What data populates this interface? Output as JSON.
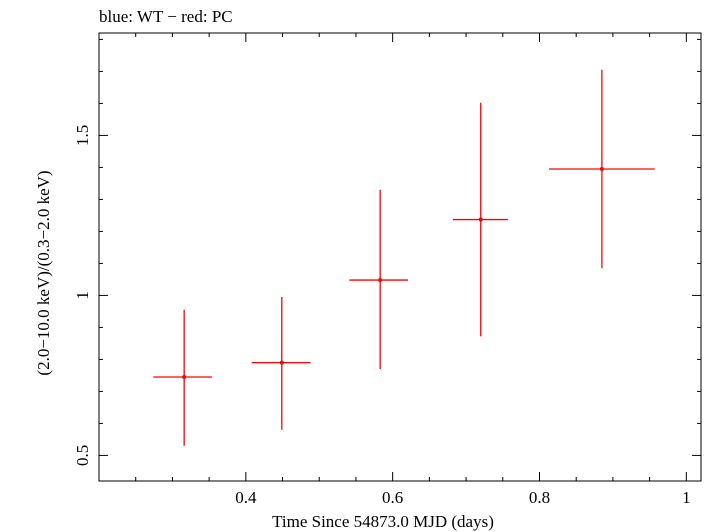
{
  "chart_data": {
    "type": "scatter",
    "title": "blue: WT − red: PC",
    "xlabel": "Time Since 54873.0 MJD (days)",
    "ylabel": "(2.0−10.0 keV)/(0.3−2.0 keV)",
    "xlim": [
      0.2,
      1.02
    ],
    "ylim": [
      0.42,
      1.82
    ],
    "xticks": [
      {
        "value": 0.4,
        "label": "0.4"
      },
      {
        "value": 0.6,
        "label": "0.6"
      },
      {
        "value": 0.8,
        "label": "0.8"
      },
      {
        "value": 1.0,
        "label": "1"
      }
    ],
    "yticks": [
      {
        "value": 0.5,
        "label": "0.5"
      },
      {
        "value": 1.0,
        "label": "1"
      },
      {
        "value": 1.5,
        "label": "1.5"
      }
    ],
    "grid": false,
    "series": [
      {
        "name": "PC",
        "color": "#ff0000",
        "points": [
          {
            "x": 0.316,
            "xerr_lo": 0.042,
            "xerr_hi": 0.038,
            "y": 0.745,
            "yerr_lo": 0.215,
            "yerr_hi": 0.21
          },
          {
            "x": 0.449,
            "xerr_lo": 0.041,
            "xerr_hi": 0.039,
            "y": 0.79,
            "yerr_lo": 0.21,
            "yerr_hi": 0.205
          },
          {
            "x": 0.583,
            "xerr_lo": 0.042,
            "xerr_hi": 0.038,
            "y": 1.048,
            "yerr_lo": 0.278,
            "yerr_hi": 0.282
          },
          {
            "x": 0.72,
            "xerr_lo": 0.038,
            "xerr_hi": 0.037,
            "y": 1.237,
            "yerr_lo": 0.365,
            "yerr_hi": 0.365
          },
          {
            "x": 0.885,
            "xerr_lo": 0.072,
            "xerr_hi": 0.072,
            "y": 1.395,
            "yerr_lo": 0.31,
            "yerr_hi": 0.31
          }
        ]
      }
    ]
  }
}
